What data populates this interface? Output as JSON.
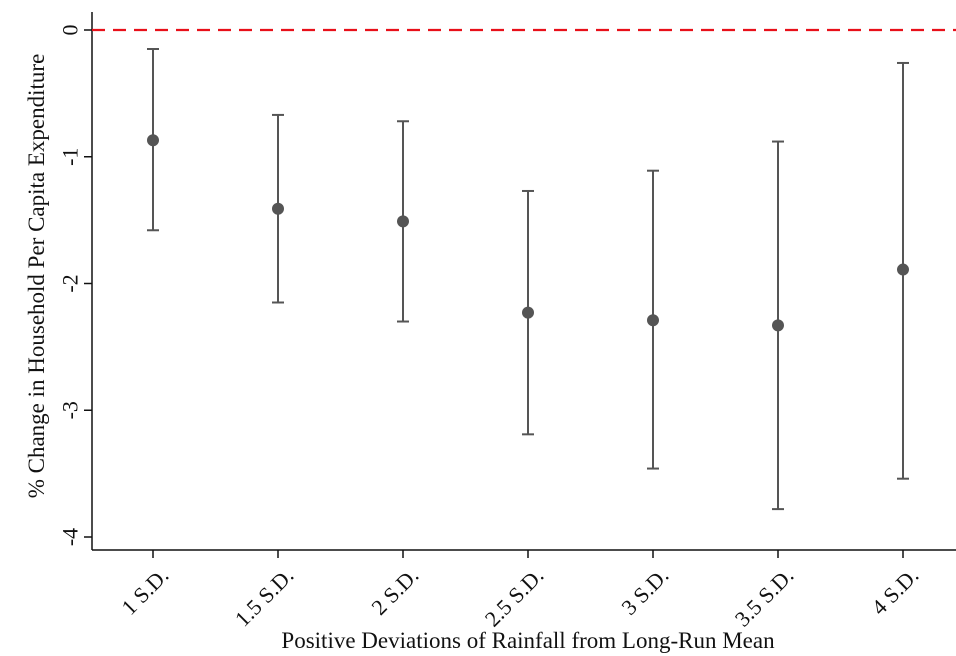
{
  "chart_data": {
    "type": "scatter",
    "subtype": "point-estimate-with-confidence-intervals",
    "title": "",
    "xlabel": "Positive Deviations of Rainfall from Long-Run Mean",
    "ylabel": "% Change in Household Per Capita Expenditure",
    "categories": [
      "1 S.D.",
      "1.5 S.D.",
      "2 S.D.",
      "2.5 S.D.",
      "3 S.D.",
      "3.5 S.D.",
      "4 S.D."
    ],
    "series": [
      {
        "estimate": [
          -0.87,
          -1.41,
          -1.51,
          -2.23,
          -2.29,
          -2.33,
          -1.89
        ],
        "ci_lower": [
          -1.58,
          -2.15,
          -2.3,
          -3.19,
          -3.46,
          -3.78,
          -3.54
        ],
        "ci_upper": [
          -0.15,
          -0.67,
          -0.72,
          -1.27,
          -1.11,
          -0.88,
          -0.26
        ]
      }
    ],
    "ylim": [
      -4.1,
      0.1
    ],
    "yticks": [
      0,
      -1,
      -2,
      -3,
      -4
    ],
    "ytick_labels": [
      "0",
      "-1",
      "-2",
      "-3",
      "-4"
    ],
    "reference_line": {
      "y": 0,
      "style": "dashed",
      "color": "#e8101a"
    },
    "colors": {
      "points": "#555555",
      "error_bars": "#555555",
      "axes": "#111111"
    },
    "grid": false,
    "legend": "none"
  }
}
